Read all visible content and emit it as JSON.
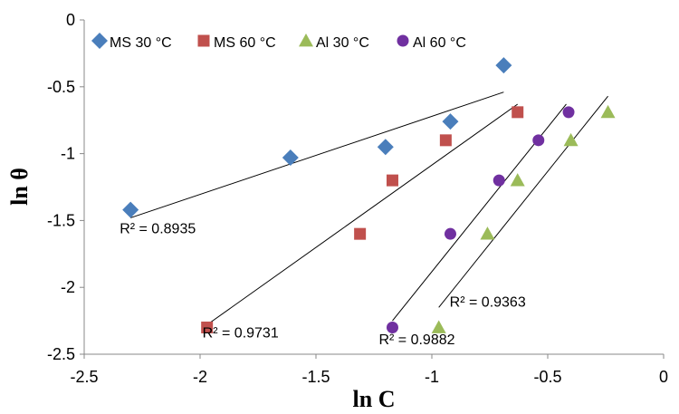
{
  "chart_data": {
    "type": "scatter",
    "xlabel": "ln C",
    "ylabel": "ln θ",
    "xlim": [
      -2.5,
      0
    ],
    "ylim": [
      -2.5,
      0
    ],
    "x_ticks": [
      -2.5,
      -2,
      -1.5,
      -1,
      -0.5,
      0
    ],
    "x_tick_labels": [
      "-2.5",
      "-2",
      "-1.5",
      "-1",
      "-0.5",
      "0"
    ],
    "y_ticks": [
      0,
      -0.5,
      -1,
      -1.5,
      -2,
      -2.5
    ],
    "y_tick_labels": [
      "0",
      "-0.5",
      "-1",
      "-1.5",
      "-2",
      "-2.5"
    ],
    "legend_position": "top",
    "grid": false,
    "series": [
      {
        "name": "MS 30 °C",
        "marker": "diamond",
        "color": "#4A7EBB",
        "points": [
          [
            -2.3,
            -1.42
          ],
          [
            -1.61,
            -1.03
          ],
          [
            -1.2,
            -0.95
          ],
          [
            -0.92,
            -0.76
          ],
          [
            -0.69,
            -0.34
          ]
        ],
        "trendline": {
          "x": [
            -2.3,
            -0.69
          ],
          "y": [
            -1.48,
            -0.54
          ]
        },
        "r2_label": "R² = 0.8935"
      },
      {
        "name": "MS 60 °C",
        "marker": "square",
        "color": "#C0504D",
        "points": [
          [
            -1.97,
            -2.3
          ],
          [
            -1.31,
            -1.6
          ],
          [
            -1.17,
            -1.2
          ],
          [
            -0.94,
            -0.9
          ],
          [
            -0.63,
            -0.69
          ]
        ],
        "trendline": {
          "x": [
            -1.97,
            -0.63
          ],
          "y": [
            -2.28,
            -0.63
          ]
        },
        "r2_label": "R² = 0.9731"
      },
      {
        "name": "Al 30 °C",
        "marker": "triangle",
        "color": "#9BBB59",
        "points": [
          [
            -0.97,
            -2.3
          ],
          [
            -0.76,
            -1.6
          ],
          [
            -0.63,
            -1.2
          ],
          [
            -0.4,
            -0.9
          ],
          [
            -0.24,
            -0.69
          ]
        ],
        "trendline": {
          "x": [
            -0.97,
            -0.24
          ],
          "y": [
            -2.15,
            -0.57
          ]
        },
        "r2_label": "R² = 0.9363"
      },
      {
        "name": "Al 60 °C",
        "marker": "circle",
        "color": "#7030A0",
        "points": [
          [
            -1.17,
            -2.3
          ],
          [
            -0.92,
            -1.6
          ],
          [
            -0.71,
            -1.2
          ],
          [
            -0.54,
            -0.9
          ],
          [
            -0.41,
            -0.69
          ]
        ],
        "trendline": {
          "x": [
            -1.17,
            -0.42
          ],
          "y": [
            -2.25,
            -0.63
          ]
        },
        "r2_label": "R² = 0.9882"
      }
    ]
  }
}
